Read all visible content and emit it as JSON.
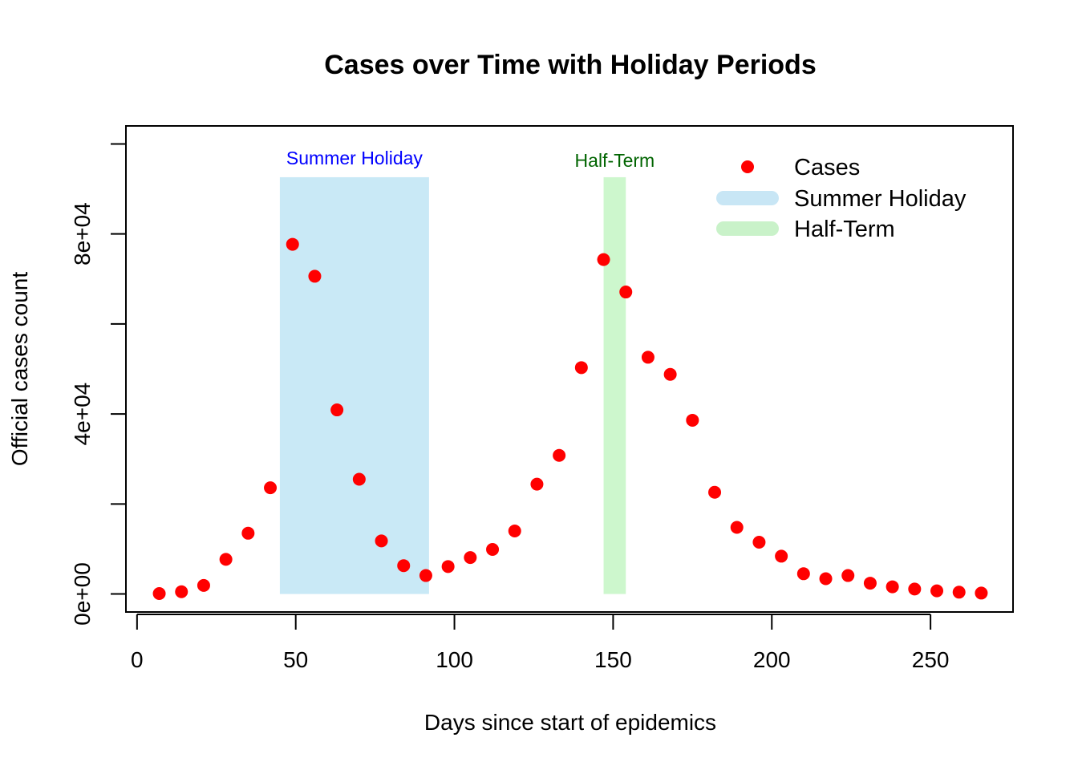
{
  "chart_data": {
    "type": "scatter",
    "title": "Cases over Time with Holiday Periods",
    "xlabel": "Days since start of epidemics",
    "ylabel": "Official cases count",
    "xlim": [
      -3.5,
      276
    ],
    "ylim": [
      -4000,
      104000
    ],
    "x_ticks": [
      0,
      50,
      100,
      150,
      200,
      250
    ],
    "x_tick_labels": [
      "0",
      "50",
      "100",
      "150",
      "200",
      "250"
    ],
    "y_ticks": [
      0,
      20000,
      40000,
      60000,
      80000,
      100000
    ],
    "y_tick_labels": [
      "0e+00",
      "",
      "4e+04",
      "",
      "8e+04",
      ""
    ],
    "series": [
      {
        "name": "Cases",
        "color": "#ff0000",
        "x": [
          7,
          14,
          21,
          28,
          35,
          42,
          49,
          56,
          63,
          70,
          77,
          84,
          91,
          98,
          105,
          112,
          119,
          126,
          133,
          140,
          147,
          154,
          161,
          168,
          175,
          182,
          189,
          196,
          203,
          210,
          217,
          224,
          231,
          238,
          245,
          252,
          259,
          266
        ],
        "y": [
          100,
          500,
          1900,
          7700,
          13500,
          23600,
          77700,
          70600,
          40900,
          25500,
          11800,
          6300,
          4100,
          6100,
          8100,
          9900,
          14000,
          24400,
          30800,
          50300,
          74300,
          67100,
          52600,
          48800,
          38600,
          22600,
          14800,
          11500,
          8400,
          4500,
          3400,
          4100,
          2400,
          1600,
          1100,
          700,
          400,
          200
        ]
      }
    ],
    "bands": [
      {
        "name": "Summer Holiday",
        "label": "Summer Holiday",
        "x_start": 45,
        "x_end": 92,
        "y_top": 92600,
        "fill": "#87ceeb",
        "opacity": 0.45,
        "label_color": "#0000ff"
      },
      {
        "name": "Half-Term",
        "label": "Half-Term",
        "x_start": 147,
        "x_end": 154,
        "y_top": 92600,
        "fill": "#90ee90",
        "opacity": 0.45,
        "label_color": "#006400"
      }
    ],
    "legend": {
      "position": "top-right",
      "entries": [
        {
          "label": "Cases",
          "kind": "point",
          "color": "#ff0000"
        },
        {
          "label": "Summer Holiday",
          "kind": "line",
          "color": "#c8e6f5"
        },
        {
          "label": "Half-Term",
          "kind": "line",
          "color": "#c9f2c9"
        }
      ]
    },
    "grid": false
  }
}
